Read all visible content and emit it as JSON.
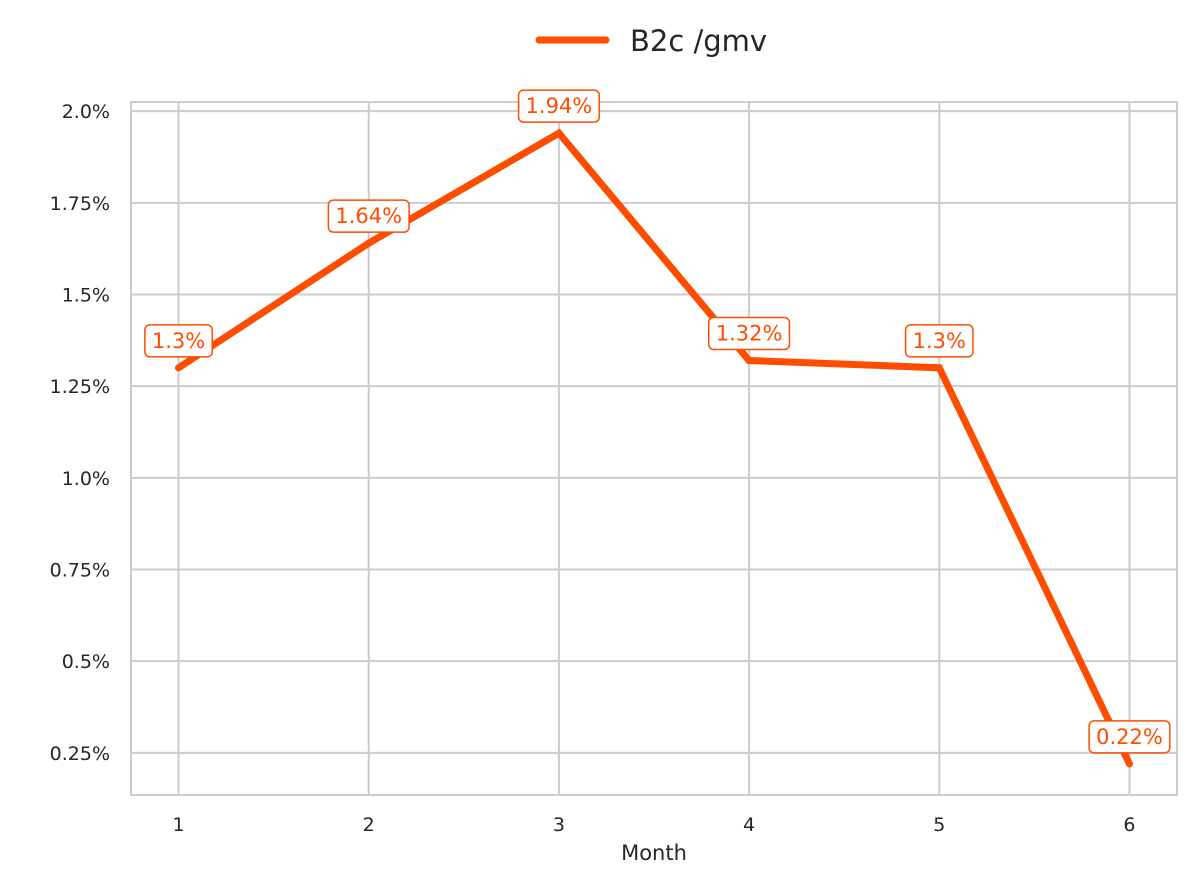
{
  "chart_data": {
    "type": "line",
    "title": "",
    "xlabel": "Month",
    "ylabel": "",
    "x": [
      1,
      2,
      3,
      4,
      5,
      6
    ],
    "x_tick_labels": [
      "1",
      "2",
      "3",
      "4",
      "5",
      "6"
    ],
    "y_ticks": [
      0.25,
      0.5,
      0.75,
      1.0,
      1.25,
      1.5,
      1.75,
      2.0
    ],
    "y_tick_labels": [
      "0.25%",
      "0.5%",
      "0.75%",
      "1.0%",
      "1.25%",
      "1.5%",
      "1.75%",
      "2.0%"
    ],
    "xlim": [
      0.75,
      6.25
    ],
    "ylim": [
      0.135,
      2.025
    ],
    "grid": true,
    "legend_position": "top-center",
    "series": [
      {
        "name": "B2c /gmv",
        "color": "#ff4d00",
        "values": [
          1.3,
          1.64,
          1.94,
          1.32,
          1.3,
          0.22
        ],
        "data_labels": [
          "1.3%",
          "1.64%",
          "1.94%",
          "1.32%",
          "1.3%",
          "0.22%"
        ]
      }
    ]
  }
}
